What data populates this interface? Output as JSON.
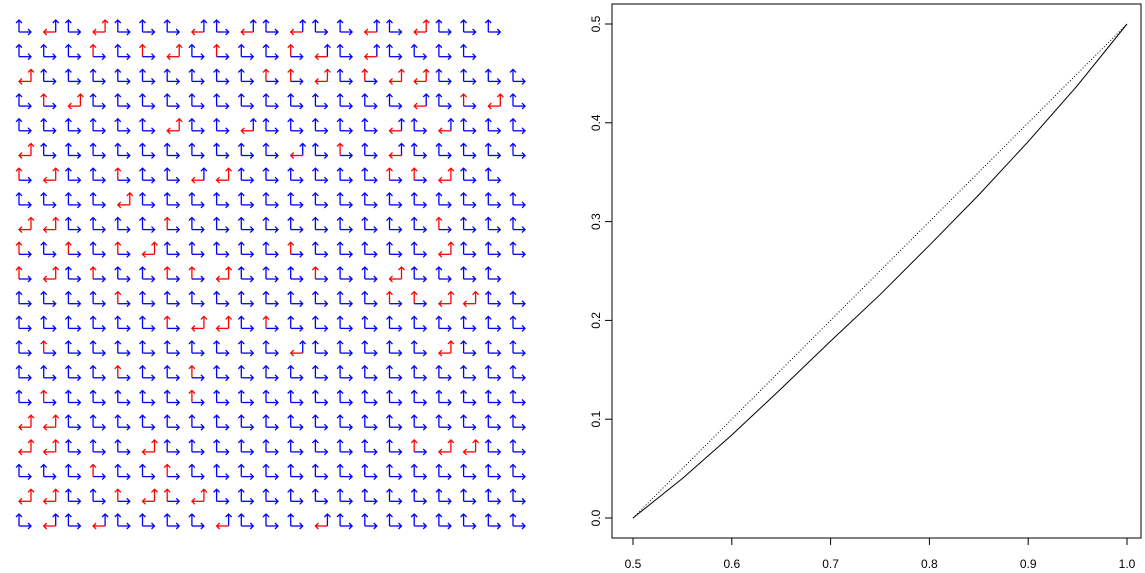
{
  "colors": {
    "positive": "#ff0000",
    "negative": "#0000ff",
    "axis": "#000000",
    "background": "#ffffff"
  },
  "chart_data": [
    {
      "type": "other",
      "description_of_encoding": "grid of L-shaped arrow glyphs; each glyph has a vertical arrow and a horizontal arrow; colour codes the spin state of each cell",
      "rows": 21,
      "cols": 21,
      "glyph_legend": {
        "B": "blue L: up arrow and right arrow",
        "R": "red L: up arrow and left arrow",
        "Rh": "blue up arrow with red left arrow",
        "Rv": "red up arrow with blue right arrow"
      },
      "cells": [
        "BRhBRBBBRhBRhBRhBBRhBRBBB",
        "BBBRvBRvRBRvBBRvRhBRhBBBB",
        "RBBBBBBBBBRvRvRBRvRRBBBBB",
        "BRvRBBBBBBBBBBBBBRhBRvRBB",
        "BBBBBBRBBRhBBBBBRhBRhBBBB",
        "RBBBBBBBBBBRhBRvBRhBBBBBB",
        "RvRBBRvBBRhRBBBBBBRvRvRBB",
        "BBBBRBBBBBBBBBBBBBBBBBBBB",
        "RRBBBBRvBBBBBBBBBBRvBBBBB",
        "RvBRvBRvRBBBBBRvBBBBBRBBB",
        "RvRBRvBBRvRvRBBBRvBBRBBBB",
        "BBBBRvBBBBBBBBBBRvRvRRBBB",
        "BBBBBBRvRRBRvBBBBBBBBBBBB",
        "BRvBBBBBBBBBRhBBBBBRBBBBB",
        "BBBBRvBBRvBBBBBBBBBBBBBBB",
        "BRvBBBBBRvBBBBBBBBBBBBBBB",
        "RRBBBBBBBBBBBBBBBBBBBBBBB",
        "RRBBBRBBBBBBBBBBRvRRBBBBB",
        "BBBRvBBRvBBBBBBBBBBBBBBBB",
        "RRBBRvRRvRBBBBBBBBBBBBBBB",
        "BRhBRhBBBBRhBBBRhBBBBBBBB"
      ]
    },
    {
      "type": "line",
      "series": [
        {
          "name": "",
          "style": "solid",
          "x": [
            0.5,
            0.55,
            0.6,
            0.65,
            0.7,
            0.75,
            0.8,
            0.85,
            0.9,
            0.95,
            1.0
          ],
          "y": [
            0.0,
            0.04,
            0.084,
            0.131,
            0.179,
            0.226,
            0.276,
            0.327,
            0.381,
            0.438,
            0.5
          ]
        },
        {
          "name": "",
          "style": "dotted",
          "x": [
            0.5,
            1.0
          ],
          "y": [
            0.0,
            0.5
          ]
        }
      ],
      "xlim": [
        0.5,
        1.0
      ],
      "ylim": [
        0.0,
        0.5
      ],
      "x_ticks": [
        "0.5",
        "0.6",
        "0.7",
        "0.8",
        "0.9",
        "1.0"
      ],
      "y_ticks": [
        "0.0",
        "0.1",
        "0.2",
        "0.3",
        "0.4",
        "0.5"
      ],
      "xlabel": "",
      "ylabel": "",
      "title": "",
      "grid": false
    }
  ]
}
